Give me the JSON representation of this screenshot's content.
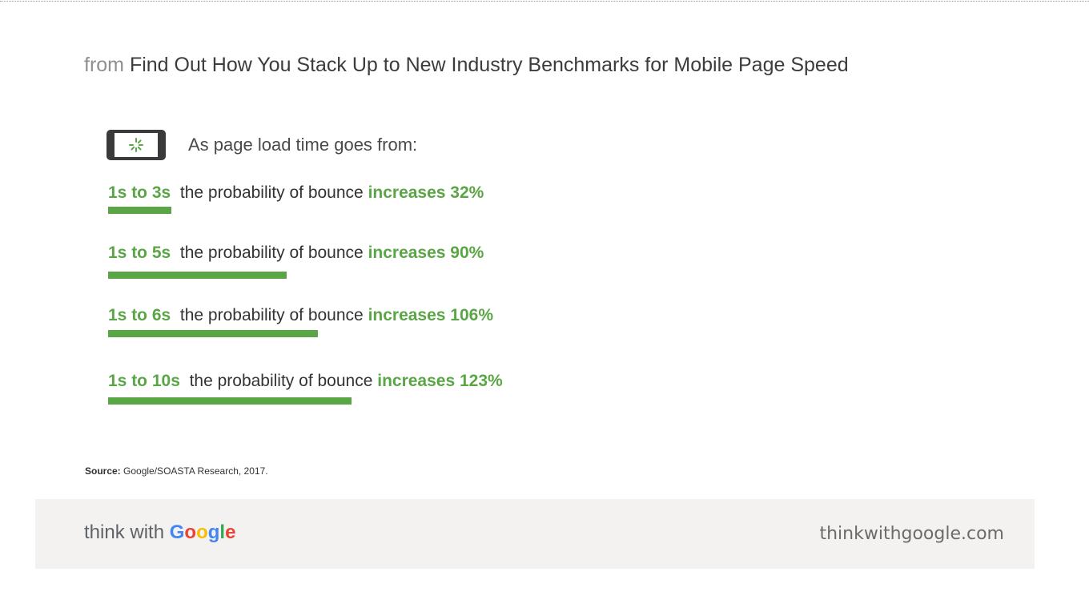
{
  "title": {
    "prefix": "from",
    "text": "Find Out How You Stack Up to New Industry Benchmarks for Mobile Page Speed"
  },
  "intro": "As page load time goes from:",
  "rows": [
    {
      "range": "1s to 3s",
      "text": "the probability of bounce",
      "increase": "increases 32%"
    },
    {
      "range": "1s to 5s",
      "text": "the probability of bounce",
      "increase": "increases 90%"
    },
    {
      "range": "1s to 6s",
      "text": "the probability of bounce",
      "increase": "increases 106%"
    },
    {
      "range": "1s to 10s",
      "text": "the probability of bounce",
      "increase": "increases 123%"
    }
  ],
  "chart_data": {
    "type": "bar",
    "orientation": "horizontal",
    "categories": [
      "1s to 3s",
      "1s to 5s",
      "1s to 6s",
      "1s to 10s"
    ],
    "values": [
      32,
      90,
      106,
      123
    ],
    "unit": "%",
    "color": "#5aa646"
  },
  "source": {
    "label": "Source:",
    "text": "Google/SOASTA Research, 2017."
  },
  "footer": {
    "brand_think": "think",
    "brand_with": "with",
    "brand_google": "Google",
    "site": "thinkwithgoogle.com"
  },
  "icons": {
    "phone": "phone-loading-icon"
  },
  "colors": {
    "accent_green": "#5aa646",
    "google_blue": "#4285f4",
    "google_red": "#ea4335",
    "google_yellow": "#fbbc05",
    "google_green": "#34a853",
    "footer_bg": "#f3f2f1"
  }
}
